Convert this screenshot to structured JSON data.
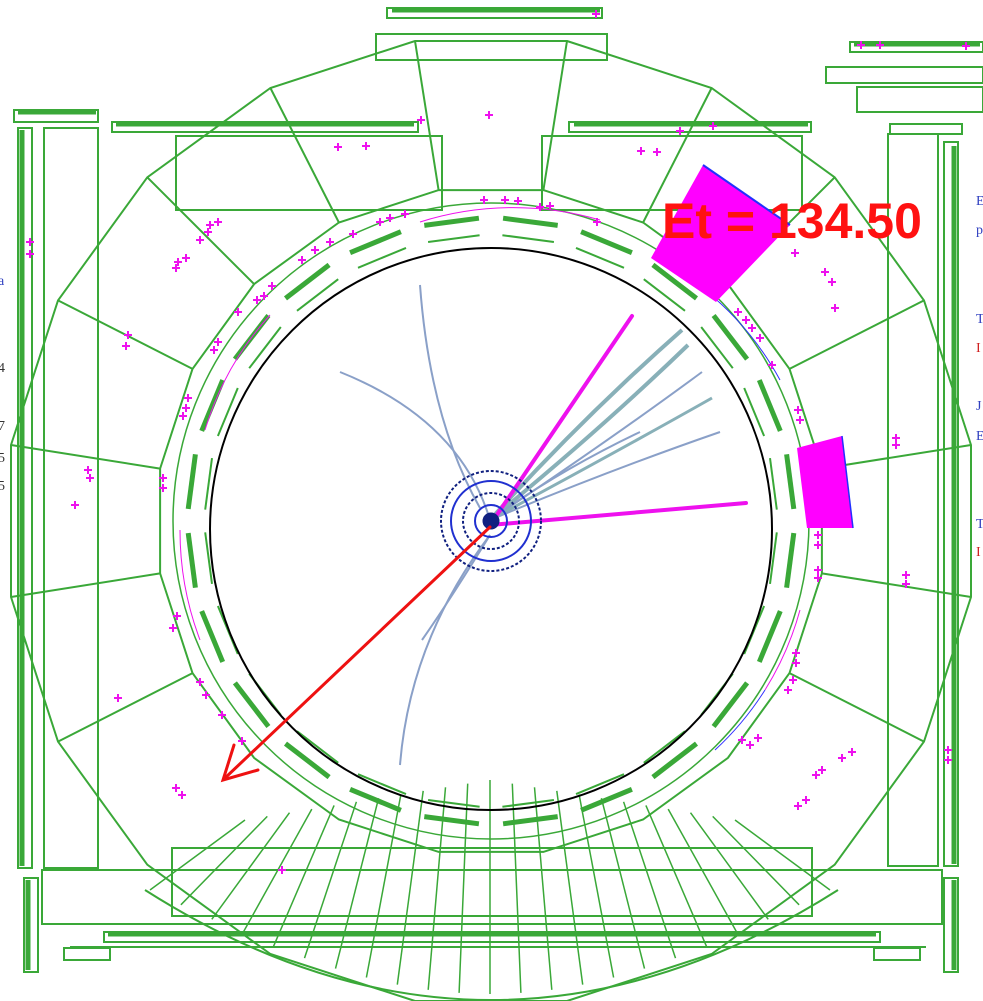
{
  "title": "Et = 134.50",
  "colors": {
    "background": "#ffffff",
    "detector": "#3aa838",
    "hits": "#ee11ee",
    "missing_et_arrow": "#ee1111",
    "tracks": "#8aa0c8",
    "solenoid": "#000000",
    "vertex": "#102080",
    "side_text_blue": "#3040c0",
    "side_text_red": "#d02020",
    "energy_deposit": "#ff00ff"
  },
  "left_margin_text": [
    "a",
    "4",
    "7",
    "5",
    "5"
  ],
  "right_margin_text": [
    "E",
    "p",
    "T",
    "I",
    "J",
    "E",
    "T",
    "I"
  ]
}
